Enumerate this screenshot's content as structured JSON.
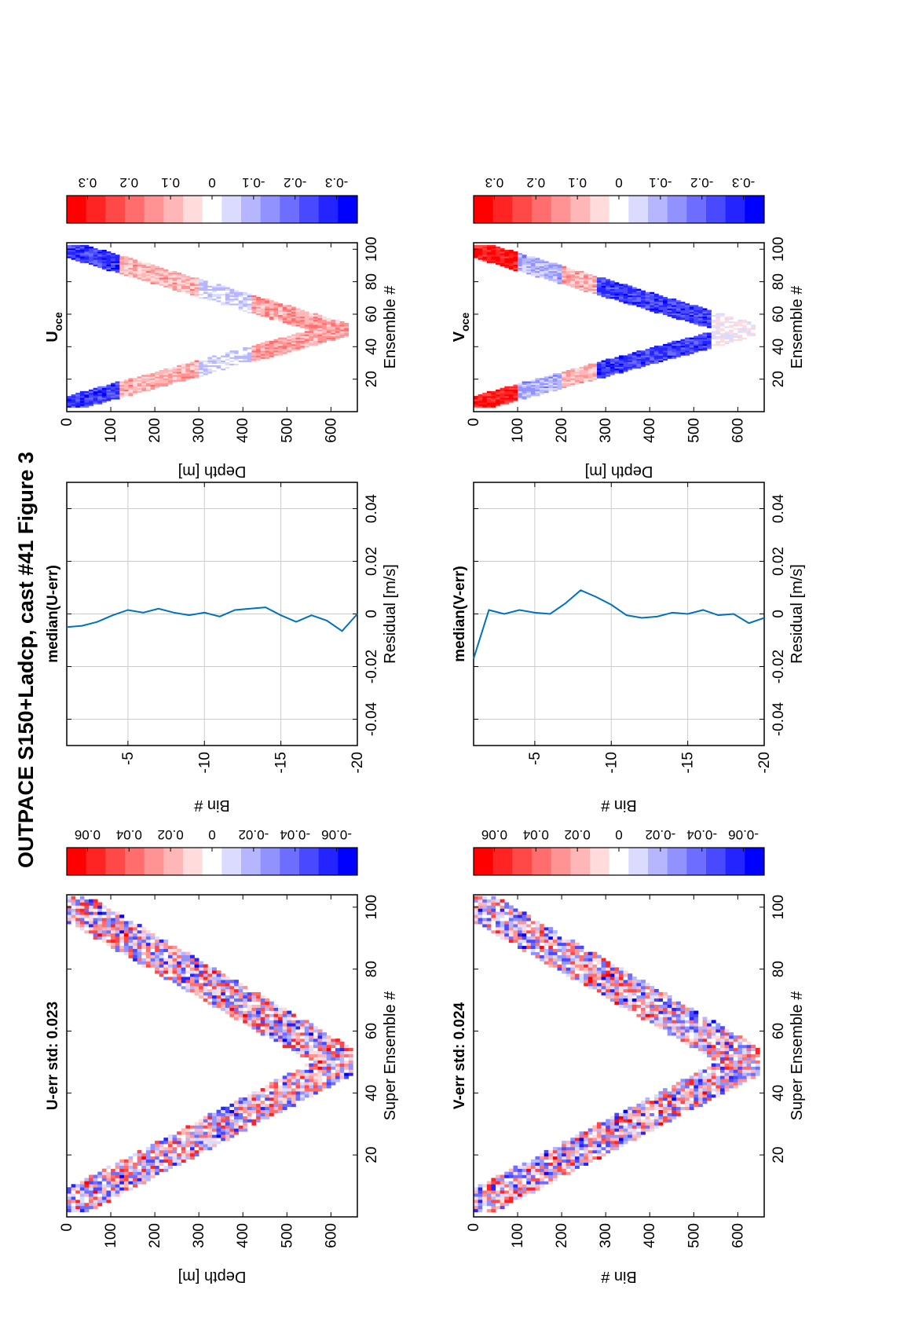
{
  "figure_title": "OUTPACE S150+Ladcp, cast #41  Figure 3",
  "colors": {
    "red": "#ff0000",
    "blue": "#0000ff",
    "line": "#0072bd",
    "grid": "#cccccc"
  },
  "colormap_levels": 15,
  "chart_data": [
    {
      "id": "u-err",
      "type": "heatmap",
      "title": "U-err std: 0.023",
      "xlabel": "Super Ensemble #",
      "ylabel": "Depth [m]",
      "xlim": [
        0,
        104
      ],
      "ylim": [
        0,
        660
      ],
      "y_reversed": true,
      "xticks": [
        20,
        40,
        60,
        80,
        100
      ],
      "yticks": [
        0,
        100,
        200,
        300,
        400,
        500,
        600
      ],
      "profile": {
        "x_start": 2,
        "x_bottom": 50,
        "x_end": 103,
        "depth_max": 650,
        "band_width_m": 160
      },
      "amplitude": 0.07,
      "colorbar": {
        "min": -0.07,
        "max": 0.07,
        "ticks": [
          0.06,
          0.04,
          0.02,
          0,
          -0.02,
          -0.04,
          -0.06
        ],
        "tick_labels": [
          "0.06",
          "0.04",
          "0.02",
          "0",
          "-0.02",
          "-0.04",
          "-0.06"
        ]
      }
    },
    {
      "id": "median-u-err",
      "type": "line",
      "title": "median(U-err)",
      "xlabel": "Residual [m/s]",
      "ylabel": "Bin #",
      "xlim": [
        -0.05,
        0.05
      ],
      "ylim": [
        -1,
        -20
      ],
      "xticks": [
        -0.04,
        -0.02,
        0,
        0.02,
        0.04
      ],
      "xtick_labels": [
        "-0.04",
        "-0.02",
        "0",
        "0.02",
        "0.04"
      ],
      "yticks": [
        -5,
        -10,
        -15,
        -20
      ],
      "grid": true,
      "series": [
        {
          "bins": [
            -1,
            -2,
            -3,
            -4,
            -5,
            -6,
            -7,
            -8,
            -9,
            -10,
            -11,
            -12,
            -13,
            -14,
            -15,
            -16,
            -17,
            -18,
            -19,
            -20
          ],
          "values": [
            -0.005,
            -0.0045,
            -0.003,
            -0.0005,
            0.0015,
            0.0005,
            0.002,
            0.0005,
            -0.0005,
            0.0005,
            -0.001,
            0.0015,
            0.002,
            0.0025,
            -0.0005,
            -0.003,
            -0.0005,
            -0.0025,
            -0.0065,
            0.0
          ]
        }
      ]
    },
    {
      "id": "u-oce",
      "type": "heatmap",
      "title": "U",
      "title_sub": "oce",
      "xlabel": "Ensemble #",
      "ylabel": "Depth [m]",
      "xlim": [
        0,
        104
      ],
      "ylim": [
        0,
        660
      ],
      "y_reversed": true,
      "xticks": [
        20,
        40,
        60,
        80,
        100
      ],
      "yticks": [
        0,
        100,
        200,
        300,
        400,
        500,
        600
      ],
      "profile": {
        "x_start": 3,
        "x_bottom": 50,
        "x_end": 102,
        "depth_max": 640,
        "band_width_m": 150
      },
      "amplitude": 0.35,
      "colorbar": {
        "min": -0.35,
        "max": 0.35,
        "ticks": [
          0.3,
          0.2,
          0.1,
          0,
          -0.1,
          -0.2,
          -0.3
        ],
        "tick_labels": [
          "0.3",
          "0.2",
          "0.1",
          "0",
          "-0.1",
          "-0.2",
          "-0.3"
        ]
      }
    },
    {
      "id": "v-err",
      "type": "heatmap",
      "title": "V-err std: 0.024",
      "xlabel": "Super Ensemble #",
      "ylabel": "Bin #",
      "xlim": [
        0,
        104
      ],
      "ylim": [
        0,
        660
      ],
      "y_reversed": true,
      "xticks": [
        20,
        40,
        60,
        80,
        100
      ],
      "yticks": [
        0,
        100,
        200,
        300,
        400,
        500,
        600
      ],
      "profile": {
        "x_start": 2,
        "x_bottom": 50,
        "x_end": 103,
        "depth_max": 650,
        "band_width_m": 160
      },
      "amplitude": 0.07,
      "colorbar": {
        "min": -0.07,
        "max": 0.07,
        "ticks": [
          0.06,
          0.04,
          0.02,
          0,
          -0.02,
          -0.04,
          -0.06
        ],
        "tick_labels": [
          "0.06",
          "0.04",
          "0.02",
          "0",
          "-0.02",
          "-0.04",
          "-0.06"
        ]
      }
    },
    {
      "id": "median-v-err",
      "type": "line",
      "title": "median(V-err)",
      "xlabel": "Residual [m/s]",
      "ylabel": "Bin #",
      "xlim": [
        -0.05,
        0.05
      ],
      "ylim": [
        -1,
        -20
      ],
      "xticks": [
        -0.04,
        -0.02,
        0,
        0.02,
        0.04
      ],
      "xtick_labels": [
        "-0.04",
        "-0.02",
        "0",
        "0.02",
        "0.04"
      ],
      "yticks": [
        -5,
        -10,
        -15,
        -20
      ],
      "grid": true,
      "series": [
        {
          "bins": [
            -1,
            -2,
            -3,
            -4,
            -5,
            -6,
            -7,
            -8,
            -9,
            -10,
            -11,
            -12,
            -13,
            -14,
            -15,
            -16,
            -17,
            -18,
            -19,
            -20
          ],
          "values": [
            -0.017,
            0.0015,
            0.0,
            0.0015,
            0.0005,
            0.0,
            0.004,
            0.009,
            0.0065,
            0.0035,
            -0.0005,
            -0.0015,
            -0.001,
            0.0005,
            0.0,
            0.0015,
            -0.0005,
            0.0,
            -0.0035,
            -0.0015
          ]
        }
      ]
    },
    {
      "id": "v-oce",
      "type": "heatmap",
      "title": "V",
      "title_sub": "oce",
      "xlabel": "Ensemble #",
      "ylabel": "Depth [m]",
      "xlim": [
        0,
        104
      ],
      "ylim": [
        0,
        660
      ],
      "y_reversed": true,
      "xticks": [
        20,
        40,
        60,
        80,
        100
      ],
      "yticks": [
        0,
        100,
        200,
        300,
        400,
        500,
        600
      ],
      "profile": {
        "x_start": 3,
        "x_bottom": 50,
        "x_end": 102,
        "depth_max": 640,
        "band_width_m": 150
      },
      "amplitude": 0.35,
      "colorbar": {
        "min": -0.35,
        "max": 0.35,
        "ticks": [
          0.3,
          0.2,
          0.1,
          0,
          -0.1,
          -0.2,
          -0.3
        ],
        "tick_labels": [
          "0.3",
          "0.2",
          "0.1",
          "0",
          "-0.1",
          "-0.2",
          "-0.3"
        ]
      }
    }
  ]
}
